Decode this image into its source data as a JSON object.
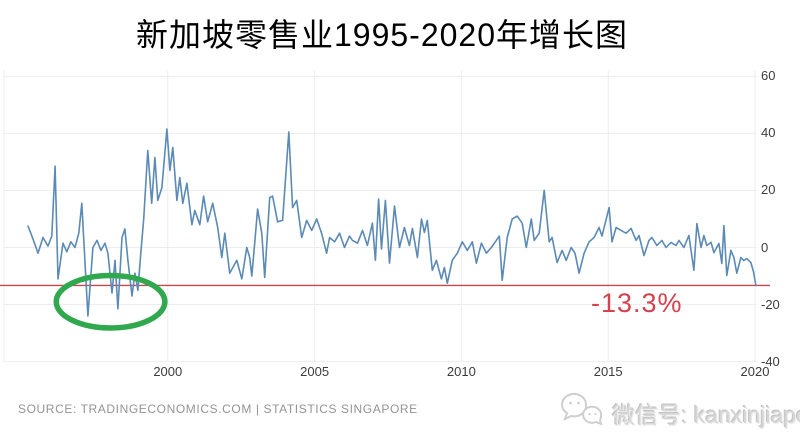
{
  "title": "新加坡零售业1995-2020年增长图",
  "source": "SOURCE: TRADINGECONOMICS.COM | STATISTICS SINGAPORE",
  "watermark": {
    "icon": "wechat-icon",
    "text": "微信号: kanxinjiapo"
  },
  "colors": {
    "line": "#5b8ab5",
    "red_line": "#c4464e",
    "annotation_red": "#d5424c",
    "highlight_green": "#2fa84e",
    "grid": "#ededed",
    "axis_text": "#3c3c3c",
    "title_text": "#000000",
    "source_text": "#949494",
    "watermark_gray": "#d6d6d6"
  },
  "chart_data": {
    "type": "line",
    "title": "新加坡零售业1995-2020年增长图",
    "xlabel": "",
    "ylabel": "",
    "x_ticks": [
      2000,
      2005,
      2010,
      2015,
      2020
    ],
    "y_ticks": [
      60,
      40,
      20,
      0,
      -20,
      -40
    ],
    "x_range": [
      1994.4,
      2021.3
    ],
    "y_range": [
      -45,
      65
    ],
    "grid": true,
    "legend": "none",
    "annotations": {
      "latest_value_label": "-13.3%",
      "latest_value": -13.3,
      "red_line_value": -13.3,
      "highlight_ellipse": {
        "center_year": 1998.05,
        "center_value": -19.0,
        "rx_years": 1.85,
        "ry_value": 9.2
      }
    },
    "series": [
      {
        "points": [
          [
            1995.24,
            7.5
          ],
          [
            1995.41,
            3
          ],
          [
            1995.58,
            -2
          ],
          [
            1995.75,
            3.5
          ],
          [
            1995.92,
            0.5
          ],
          [
            1996.05,
            4
          ],
          [
            1996.16,
            28.5
          ],
          [
            1996.26,
            -11
          ],
          [
            1996.43,
            1.5
          ],
          [
            1996.56,
            -1.5
          ],
          [
            1996.7,
            2
          ],
          [
            1996.84,
            0
          ],
          [
            1996.97,
            5
          ],
          [
            1997.07,
            15.5
          ],
          [
            1997.28,
            -24
          ],
          [
            1997.45,
            0
          ],
          [
            1997.59,
            2.5
          ],
          [
            1997.72,
            -1
          ],
          [
            1997.86,
            1.5
          ],
          [
            1997.96,
            -2
          ],
          [
            1998.1,
            -16
          ],
          [
            1998.2,
            -4.5
          ],
          [
            1998.3,
            -21.5
          ],
          [
            1998.44,
            3.5
          ],
          [
            1998.54,
            6.5
          ],
          [
            1998.64,
            -4.5
          ],
          [
            1998.78,
            -17
          ],
          [
            1998.88,
            -9
          ],
          [
            1998.98,
            -15
          ],
          [
            1999.08,
            -2
          ],
          [
            1999.18,
            10
          ],
          [
            1999.32,
            34
          ],
          [
            1999.45,
            15.5
          ],
          [
            1999.56,
            31.5
          ],
          [
            1999.66,
            16.5
          ],
          [
            1999.8,
            21
          ],
          [
            1999.97,
            41.5
          ],
          [
            2000.07,
            27
          ],
          [
            2000.17,
            35
          ],
          [
            2000.31,
            16.5
          ],
          [
            2000.41,
            24.5
          ],
          [
            2000.51,
            15.5
          ],
          [
            2000.65,
            22.5
          ],
          [
            2000.82,
            8
          ],
          [
            2000.92,
            13
          ],
          [
            2001.09,
            8
          ],
          [
            2001.22,
            18
          ],
          [
            2001.36,
            9
          ],
          [
            2001.53,
            15.5
          ],
          [
            2001.7,
            7
          ],
          [
            2001.84,
            -3.5
          ],
          [
            2001.94,
            5
          ],
          [
            2002.11,
            -9
          ],
          [
            2002.35,
            -4.5
          ],
          [
            2002.52,
            -11
          ],
          [
            2002.69,
            0
          ],
          [
            2002.79,
            -3.5
          ],
          [
            2002.86,
            -10
          ],
          [
            2002.96,
            1.5
          ],
          [
            2003.06,
            13.5
          ],
          [
            2003.2,
            5
          ],
          [
            2003.3,
            -10.5
          ],
          [
            2003.47,
            17.5
          ],
          [
            2003.57,
            18
          ],
          [
            2003.74,
            9
          ],
          [
            2003.91,
            9.5
          ],
          [
            2004.12,
            40.5
          ],
          [
            2004.25,
            14
          ],
          [
            2004.39,
            16.5
          ],
          [
            2004.56,
            3.5
          ],
          [
            2004.73,
            9.5
          ],
          [
            2004.9,
            6
          ],
          [
            2005.07,
            10
          ],
          [
            2005.24,
            5
          ],
          [
            2005.41,
            -2
          ],
          [
            2005.51,
            3.5
          ],
          [
            2005.68,
            2
          ],
          [
            2005.85,
            5
          ],
          [
            2006.02,
            0
          ],
          [
            2006.19,
            4
          ],
          [
            2006.29,
            2.5
          ],
          [
            2006.46,
            1.5
          ],
          [
            2006.63,
            6
          ],
          [
            2006.8,
            0.7
          ],
          [
            2006.97,
            8.5
          ],
          [
            2007.07,
            -4.5
          ],
          [
            2007.18,
            17
          ],
          [
            2007.28,
            -0.5
          ],
          [
            2007.41,
            16.5
          ],
          [
            2007.55,
            -5.5
          ],
          [
            2007.72,
            14.5
          ],
          [
            2007.89,
            0
          ],
          [
            2008.06,
            7
          ],
          [
            2008.23,
            0.7
          ],
          [
            2008.33,
            6.7
          ],
          [
            2008.5,
            -3.5
          ],
          [
            2008.64,
            10
          ],
          [
            2008.74,
            5.3
          ],
          [
            2008.84,
            9.5
          ],
          [
            2009.01,
            -8
          ],
          [
            2009.15,
            -4.5
          ],
          [
            2009.32,
            -11
          ],
          [
            2009.42,
            -7
          ],
          [
            2009.52,
            -12.5
          ],
          [
            2009.69,
            -4.5
          ],
          [
            2009.86,
            -2
          ],
          [
            2010.03,
            2
          ],
          [
            2010.2,
            -1
          ],
          [
            2010.37,
            2
          ],
          [
            2010.51,
            -5.5
          ],
          [
            2010.68,
            1.5
          ],
          [
            2010.85,
            -2
          ],
          [
            2011.02,
            0
          ],
          [
            2011.19,
            2.5
          ],
          [
            2011.29,
            4
          ],
          [
            2011.39,
            -11.5
          ],
          [
            2011.56,
            3.5
          ],
          [
            2011.73,
            10
          ],
          [
            2011.9,
            11
          ],
          [
            2012.07,
            8.5
          ],
          [
            2012.21,
            0
          ],
          [
            2012.38,
            10
          ],
          [
            2012.48,
            2.5
          ],
          [
            2012.65,
            5
          ],
          [
            2012.82,
            20
          ],
          [
            2012.99,
            2
          ],
          [
            2013.09,
            3.5
          ],
          [
            2013.26,
            -5.3
          ],
          [
            2013.43,
            -1
          ],
          [
            2013.57,
            -4.5
          ],
          [
            2013.74,
            0
          ],
          [
            2013.87,
            -2
          ],
          [
            2014.01,
            -9
          ],
          [
            2014.18,
            -2
          ],
          [
            2014.35,
            2
          ],
          [
            2014.52,
            3.5
          ],
          [
            2014.69,
            7
          ],
          [
            2014.79,
            4
          ],
          [
            2015.03,
            14
          ],
          [
            2015.13,
            2
          ],
          [
            2015.27,
            7
          ],
          [
            2015.44,
            6
          ],
          [
            2015.61,
            5
          ],
          [
            2015.78,
            6.7
          ],
          [
            2015.95,
            2.5
          ],
          [
            2016.05,
            4.2
          ],
          [
            2016.22,
            -2.8
          ],
          [
            2016.39,
            2.5
          ],
          [
            2016.49,
            3.5
          ],
          [
            2016.66,
            0.7
          ],
          [
            2016.83,
            2.5
          ],
          [
            2016.97,
            0
          ],
          [
            2017.14,
            1.8
          ],
          [
            2017.31,
            0.7
          ],
          [
            2017.41,
            2.5
          ],
          [
            2017.58,
            0
          ],
          [
            2017.75,
            4.2
          ],
          [
            2017.92,
            -8
          ],
          [
            2018.02,
            8.4
          ],
          [
            2018.16,
            0
          ],
          [
            2018.26,
            4.2
          ],
          [
            2018.36,
            0.7
          ],
          [
            2018.5,
            1.8
          ],
          [
            2018.6,
            -1.8
          ],
          [
            2018.77,
            1.4
          ],
          [
            2018.87,
            -5.6
          ],
          [
            2018.94,
            7.7
          ],
          [
            2019.04,
            -9.8
          ],
          [
            2019.18,
            -1
          ],
          [
            2019.28,
            -3.5
          ],
          [
            2019.38,
            -9
          ],
          [
            2019.52,
            -3.5
          ],
          [
            2019.62,
            -4.6
          ],
          [
            2019.72,
            -3.9
          ],
          [
            2019.86,
            -5.3
          ],
          [
            2019.95,
            -8.5
          ],
          [
            2020.03,
            -13.3
          ]
        ]
      }
    ]
  }
}
